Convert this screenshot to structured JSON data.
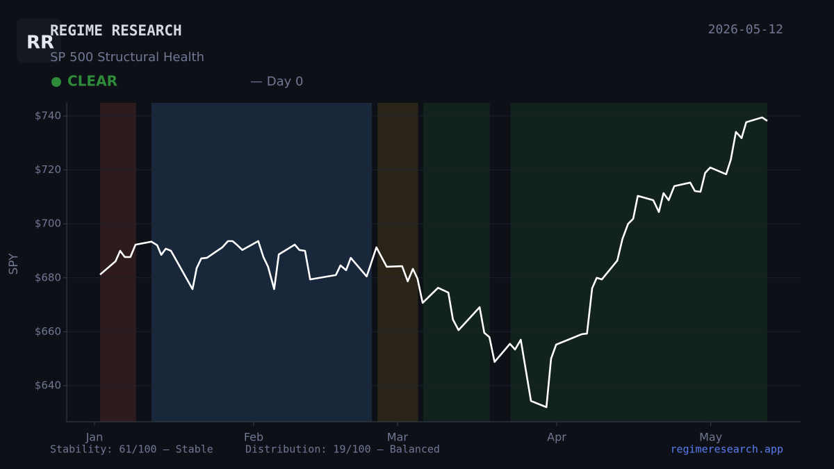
{
  "header": {
    "logo": "RR",
    "title": "REGIME RESEARCH",
    "subtitle": "SP 500 Structural Health",
    "status": "CLEAR",
    "day": "— Day 0",
    "date": "2026-05-12"
  },
  "footer": {
    "stability": "Stability: 61/100 — Stable",
    "distribution": "Distribution: 19/100 — Balanced",
    "link": "regimeresearch.app"
  },
  "chart_data": {
    "type": "line",
    "ylabel": "SPY",
    "color": "#ffffff",
    "grid": true,
    "xlim": [
      -5.4,
      137.5
    ],
    "xticks": [
      {
        "value": 0,
        "label": "Jan"
      },
      {
        "value": 31,
        "label": "Feb"
      },
      {
        "value": 59,
        "label": "Mar"
      },
      {
        "value": 90,
        "label": "Apr"
      },
      {
        "value": 120,
        "label": "May"
      }
    ],
    "ylim": [
      626.6,
      744.9
    ],
    "yticks": [
      {
        "value": 640,
        "label": "$640"
      },
      {
        "value": 660,
        "label": "$660"
      },
      {
        "value": 680,
        "label": "$680"
      },
      {
        "value": 700,
        "label": "$700"
      },
      {
        "value": 720,
        "label": "$720"
      },
      {
        "value": 740,
        "label": "$740"
      }
    ],
    "regimes": [
      {
        "start": 1.1,
        "end": 8.1,
        "color": "#2e1b1e"
      },
      {
        "start": 11.1,
        "end": 54,
        "color": "#18273a"
      },
      {
        "start": 55.1,
        "end": 63,
        "color": "#2b2519"
      },
      {
        "start": 64,
        "end": 77,
        "color": "#12221d"
      },
      {
        "start": 81,
        "end": 131,
        "color": "#12221d"
      }
    ],
    "x": [
      1.1,
      4.1,
      5,
      5.9,
      7,
      8,
      11.1,
      12.2,
      13,
      13.9,
      14.9,
      19.1,
      19.9,
      20.8,
      21.9,
      24.9,
      26,
      26.9,
      27.7,
      28.8,
      31.9,
      32.9,
      33.8,
      35,
      35.9,
      39,
      39.9,
      41,
      42,
      47,
      47.9,
      49,
      49.9,
      53,
      54.9,
      56.9,
      59.9,
      61,
      62,
      62.9,
      63.9,
      66.9,
      68.9,
      69.8,
      70.9,
      73.9,
      75,
      75.9,
      76.9,
      77.9,
      80.9,
      81.9,
      83,
      85,
      88,
      88.9,
      89.9,
      94.9,
      95.9,
      96.9,
      97.8,
      98.8,
      101.8,
      102.8,
      103.9,
      104.9,
      105.8,
      108.8,
      109.9,
      110.8,
      111.8,
      112.9,
      116,
      116.9,
      118,
      118.9,
      119.9,
      123,
      123.9,
      124.9,
      126,
      126.9,
      130,
      131
    ],
    "values": [
      681.2,
      686.1,
      690,
      687.7,
      687.7,
      692.3,
      693.4,
      692.1,
      688.5,
      690.8,
      690,
      675.8,
      683.6,
      687.2,
      687.4,
      691.3,
      693.6,
      693.6,
      692.3,
      690.3,
      693.6,
      687.7,
      684.1,
      675.8,
      688.7,
      692.3,
      690.3,
      690,
      679.4,
      681,
      684.6,
      682.8,
      687.4,
      680.5,
      691.3,
      684.1,
      684.3,
      678.7,
      683.3,
      679.7,
      670.7,
      676.3,
      674.5,
      664.5,
      660.6,
      666.8,
      669.1,
      659.6,
      658,
      648.8,
      655.5,
      653.4,
      657,
      634.3,
      632,
      650,
      655.2,
      659.1,
      659.3,
      676.1,
      680,
      679.4,
      686.4,
      694.4,
      700,
      701.9,
      710.4,
      708.8,
      704.4,
      711.4,
      708.8,
      714,
      715.3,
      712.2,
      711.9,
      718.9,
      720.9,
      718.4,
      723.8,
      734.1,
      731.8,
      737.7,
      739.5,
      738.2
    ]
  }
}
